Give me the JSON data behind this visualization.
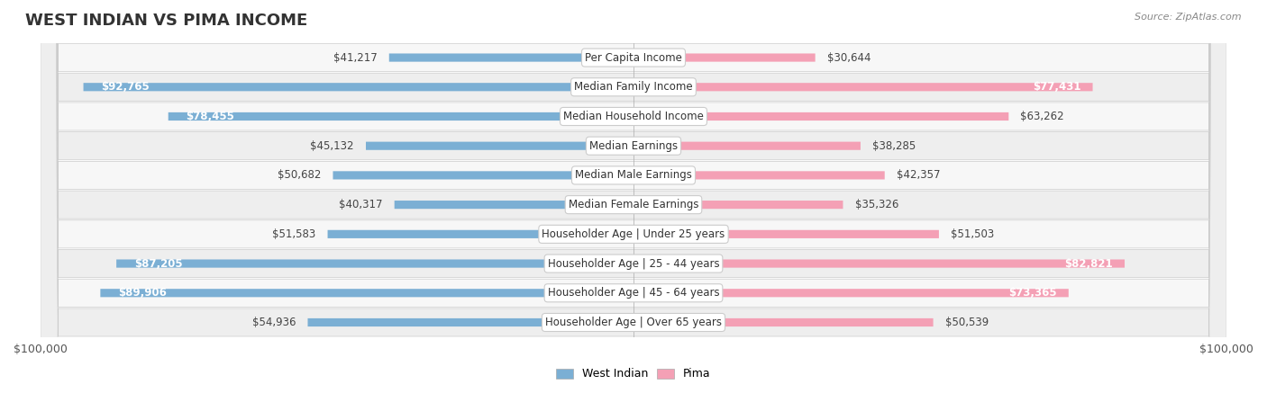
{
  "title": "WEST INDIAN VS PIMA INCOME",
  "source": "Source: ZipAtlas.com",
  "categories": [
    "Per Capita Income",
    "Median Family Income",
    "Median Household Income",
    "Median Earnings",
    "Median Male Earnings",
    "Median Female Earnings",
    "Householder Age | Under 25 years",
    "Householder Age | 25 - 44 years",
    "Householder Age | 45 - 64 years",
    "Householder Age | Over 65 years"
  ],
  "west_indian_values": [
    41217,
    92765,
    78455,
    45132,
    50682,
    40317,
    51583,
    87205,
    89906,
    54936
  ],
  "pima_values": [
    30644,
    77431,
    63262,
    38285,
    42357,
    35326,
    51503,
    82821,
    73365,
    50539
  ],
  "west_indian_labels": [
    "$41,217",
    "$92,765",
    "$78,455",
    "$45,132",
    "$50,682",
    "$40,317",
    "$51,583",
    "$87,205",
    "$89,906",
    "$54,936"
  ],
  "pima_labels": [
    "$30,644",
    "$77,431",
    "$63,262",
    "$38,285",
    "$42,357",
    "$35,326",
    "$51,503",
    "$82,821",
    "$73,365",
    "$50,539"
  ],
  "max_value": 100000,
  "west_indian_color": "#7bafd4",
  "west_indian_color_dark": "#5b9dc8",
  "pima_color": "#f4a0b5",
  "pima_color_dark": "#f07090",
  "bar_bg_color": "#f0f0f0",
  "row_bg_odd": "#f7f7f7",
  "row_bg_even": "#eeeeee",
  "label_fontsize": 9,
  "title_fontsize": 13,
  "cat_fontsize": 8.5
}
